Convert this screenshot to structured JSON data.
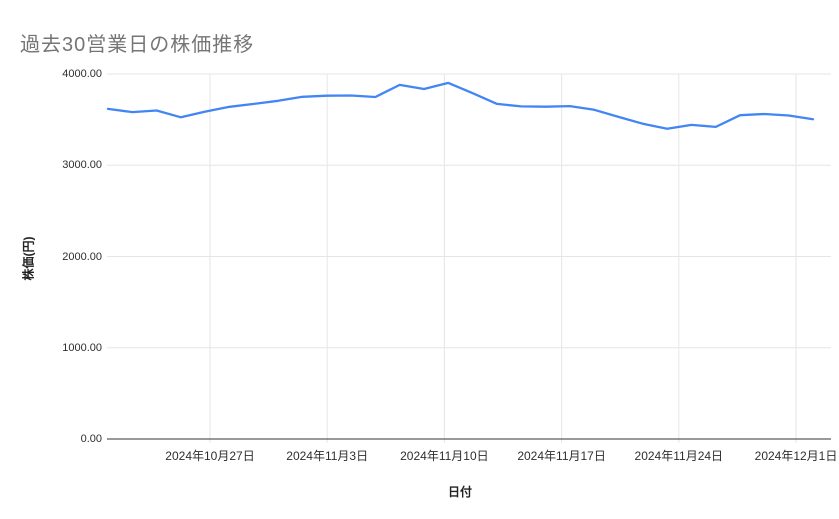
{
  "title": "過去30営業日の株価推移",
  "chart_data": {
    "type": "line",
    "title": "過去30営業日の株価推移",
    "xlabel": "日付",
    "ylabel": "株価(円)",
    "ylim": [
      0,
      4000
    ],
    "grid": true,
    "legend": "none",
    "line_color": "#4285f4",
    "axis_line_color": "#333333",
    "gridline_color": "#e6e6e6",
    "title_color": "#757575",
    "y_ticks": [
      4000,
      3000,
      2000,
      1000,
      0
    ],
    "y_tick_labels": [
      "4000.00",
      "3000.00",
      "2000.00",
      "1000.00",
      "0.00"
    ],
    "x_tick_labels": [
      "2024年10月27日",
      "2024年11月3日",
      "2024年11月10日",
      "2024年11月17日",
      "2024年11月24日",
      "2024年12月1日"
    ],
    "series": [
      {
        "name": "株価",
        "values": [
          3618,
          3582,
          3600,
          3525,
          3588,
          3640,
          3672,
          3706,
          3750,
          3762,
          3764,
          3748,
          3880,
          3836,
          3902,
          3790,
          3672,
          3645,
          3642,
          3648,
          3608,
          3530,
          3455,
          3400,
          3442,
          3420,
          3548,
          3562,
          3545,
          3505
        ]
      }
    ]
  }
}
